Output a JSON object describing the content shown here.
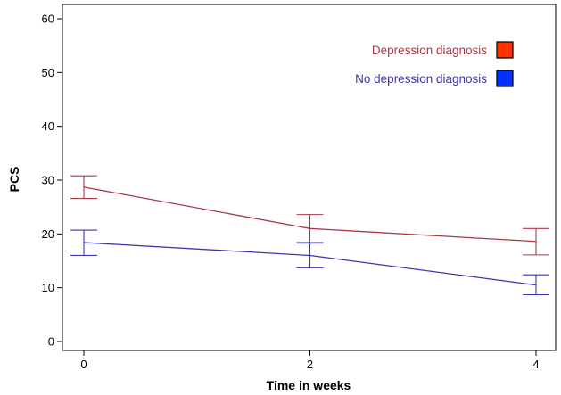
{
  "chart_data": {
    "type": "line",
    "title": "",
    "xlabel": "Time in weeks",
    "ylabel": "PCS",
    "x": [
      0,
      2,
      4
    ],
    "x_ticks": [
      "0",
      "2",
      "4"
    ],
    "xlim": [
      -0.2,
      4.2
    ],
    "ylim": [
      -1,
      61
    ],
    "y_ticks": [
      0,
      10,
      20,
      30,
      40,
      50,
      60
    ],
    "grid": false,
    "legend_position": "top-right",
    "series": [
      {
        "name": "Depression diagnosis",
        "color": "#a83a44",
        "legend_fill": "#ff3300",
        "values": [
          28.7,
          21.0,
          18.6
        ],
        "error_low": [
          26.6,
          18.4,
          16.1
        ],
        "error_high": [
          30.8,
          23.6,
          21.0
        ]
      },
      {
        "name": "No depression diagnosis",
        "color": "#3b35b0",
        "legend_fill": "#0033ff",
        "values": [
          18.4,
          16.0,
          10.5
        ],
        "error_low": [
          16.0,
          13.7,
          8.7
        ],
        "error_high": [
          20.7,
          18.3,
          12.4
        ]
      }
    ]
  }
}
